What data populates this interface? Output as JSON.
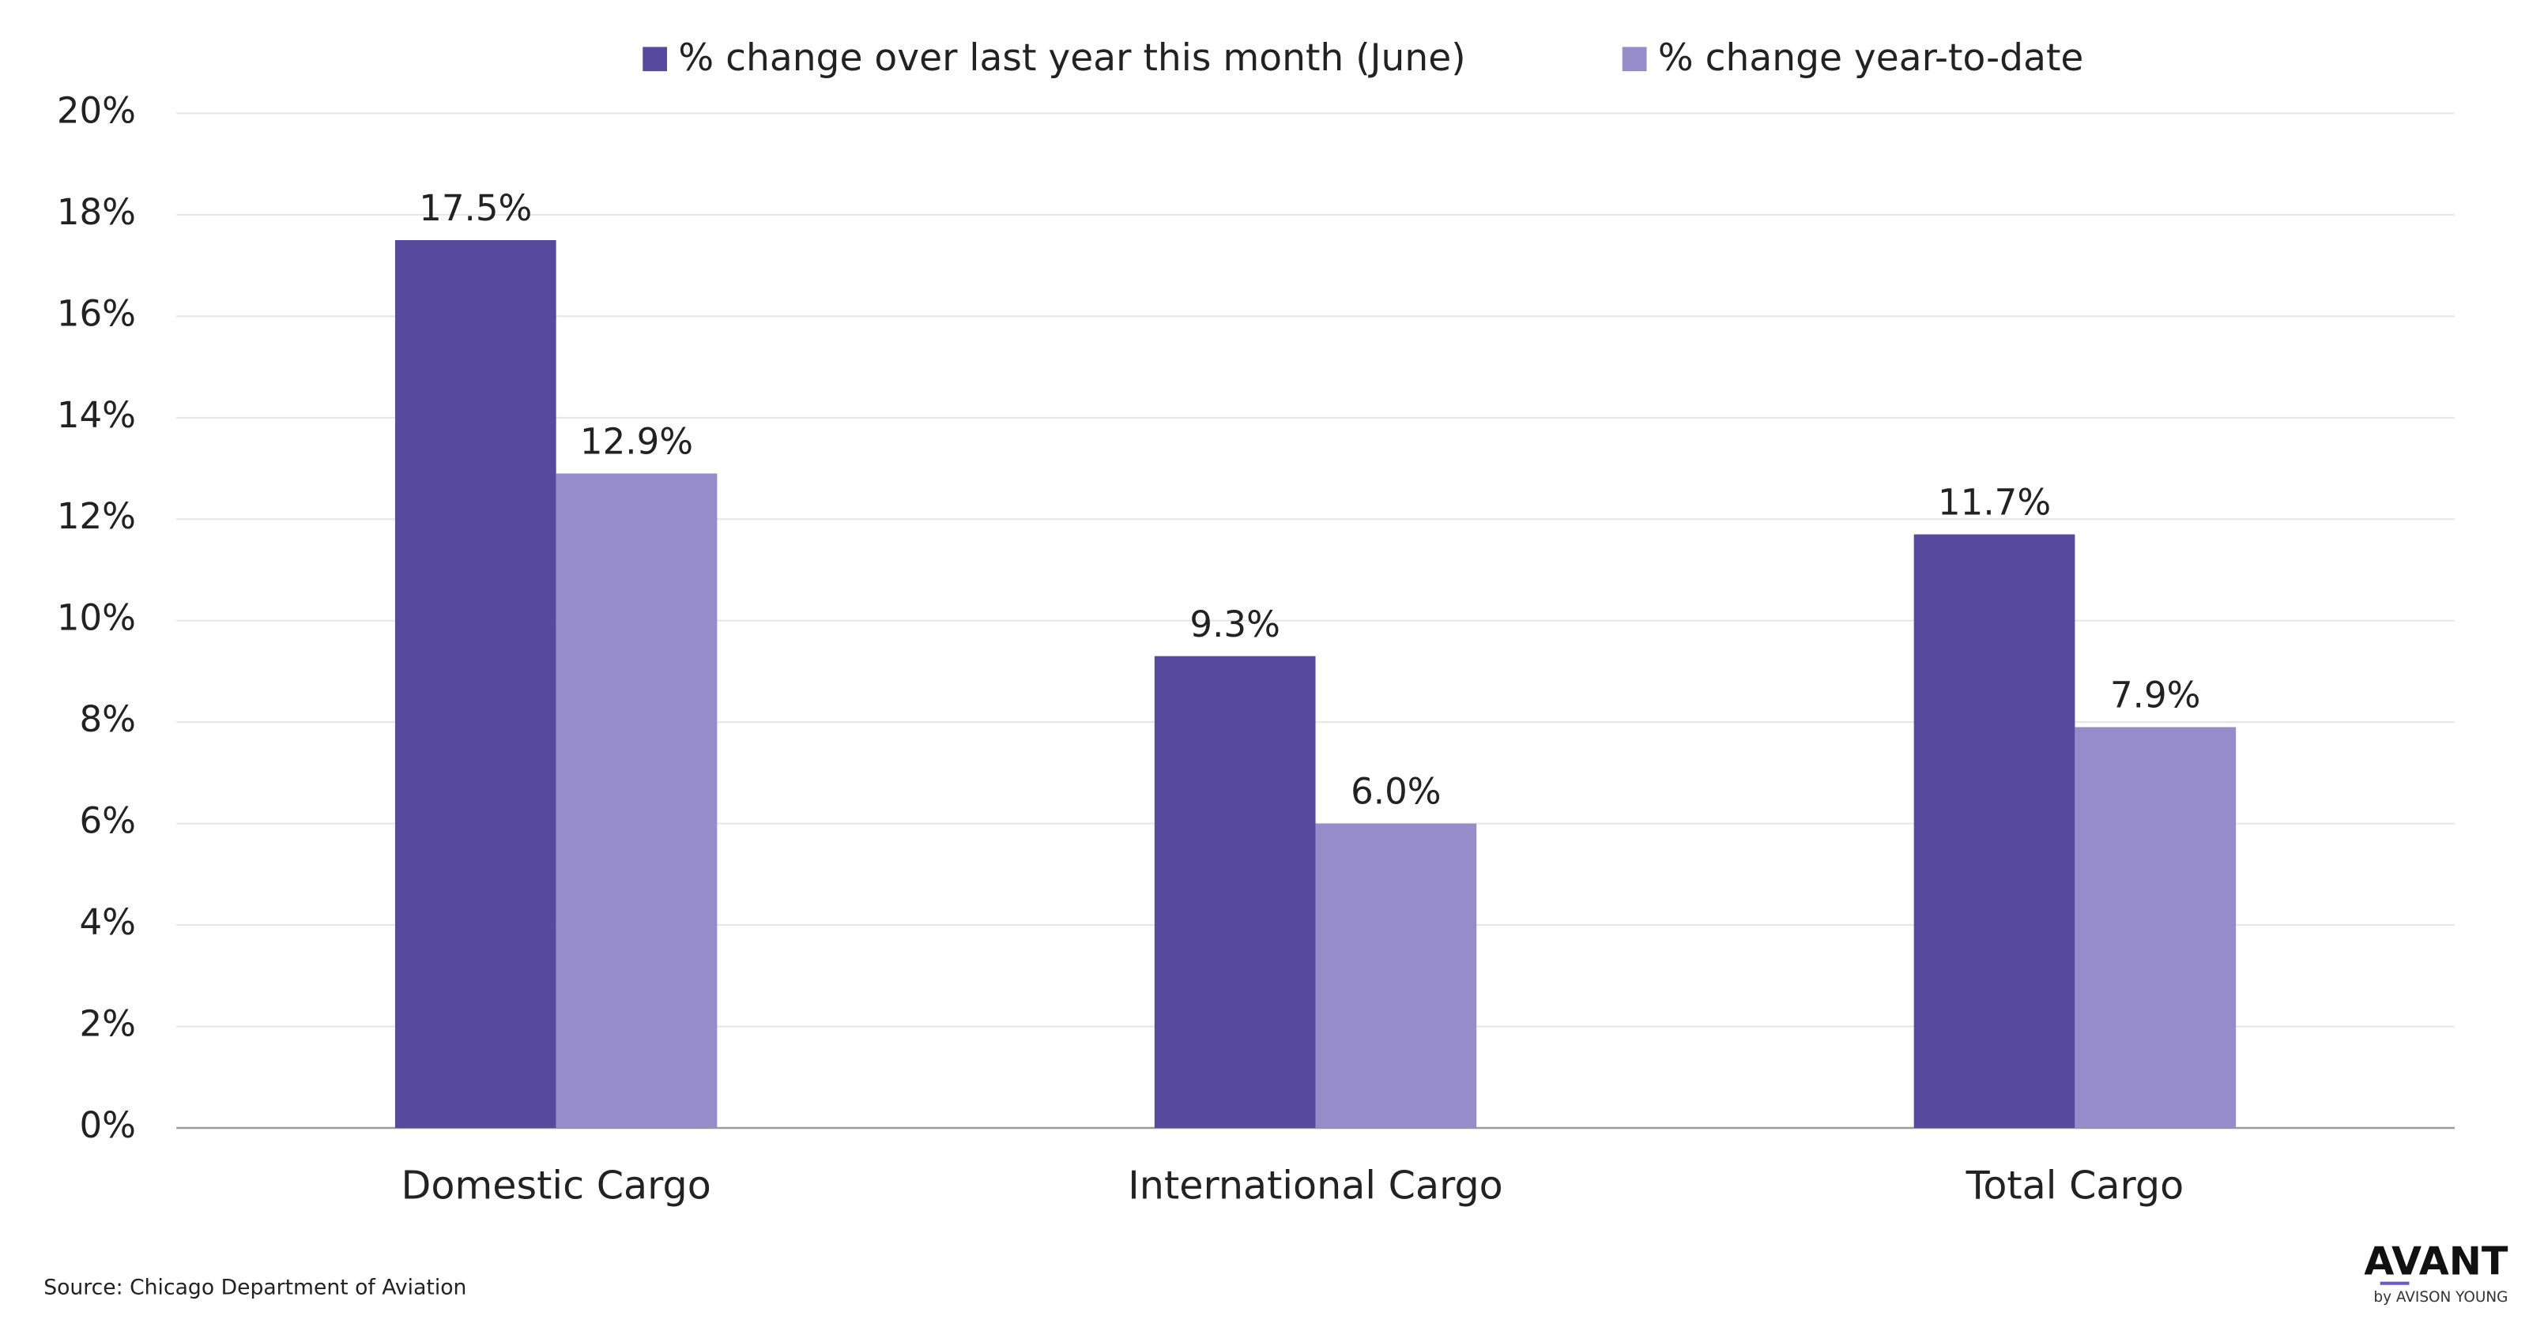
{
  "chart_data": {
    "type": "bar",
    "categories": [
      "Domestic Cargo",
      "International Cargo",
      "Total Cargo"
    ],
    "series": [
      {
        "name": "% change over last year this month (June)",
        "color": "#56499e",
        "values": [
          17.5,
          9.3,
          11.7
        ],
        "value_labels": [
          "17.5%",
          "9.3%",
          "11.7%"
        ]
      },
      {
        "name": "% change year-to-date",
        "color": "#968cca",
        "values": [
          12.9,
          6.0,
          7.9
        ],
        "value_labels": [
          "12.9%",
          "6.0%",
          "7.9%"
        ]
      }
    ],
    "ylim": [
      0,
      20
    ],
    "yticks": [
      {
        "value": 0,
        "label": "0%"
      },
      {
        "value": 2,
        "label": "2%"
      },
      {
        "value": 4,
        "label": "4%"
      },
      {
        "value": 6,
        "label": "6%"
      },
      {
        "value": 8,
        "label": "8%"
      },
      {
        "value": 10,
        "label": "10%"
      },
      {
        "value": 12,
        "label": "12%"
      },
      {
        "value": 14,
        "label": "14%"
      },
      {
        "value": 16,
        "label": "16%"
      },
      {
        "value": 18,
        "label": "18%"
      },
      {
        "value": 20,
        "label": "20%"
      }
    ],
    "grid": true,
    "legend": "top",
    "source": "Source:  Chicago Department of Aviation",
    "logo": "AVANT",
    "logo_subtitle": "by AVISON YOUNG"
  }
}
